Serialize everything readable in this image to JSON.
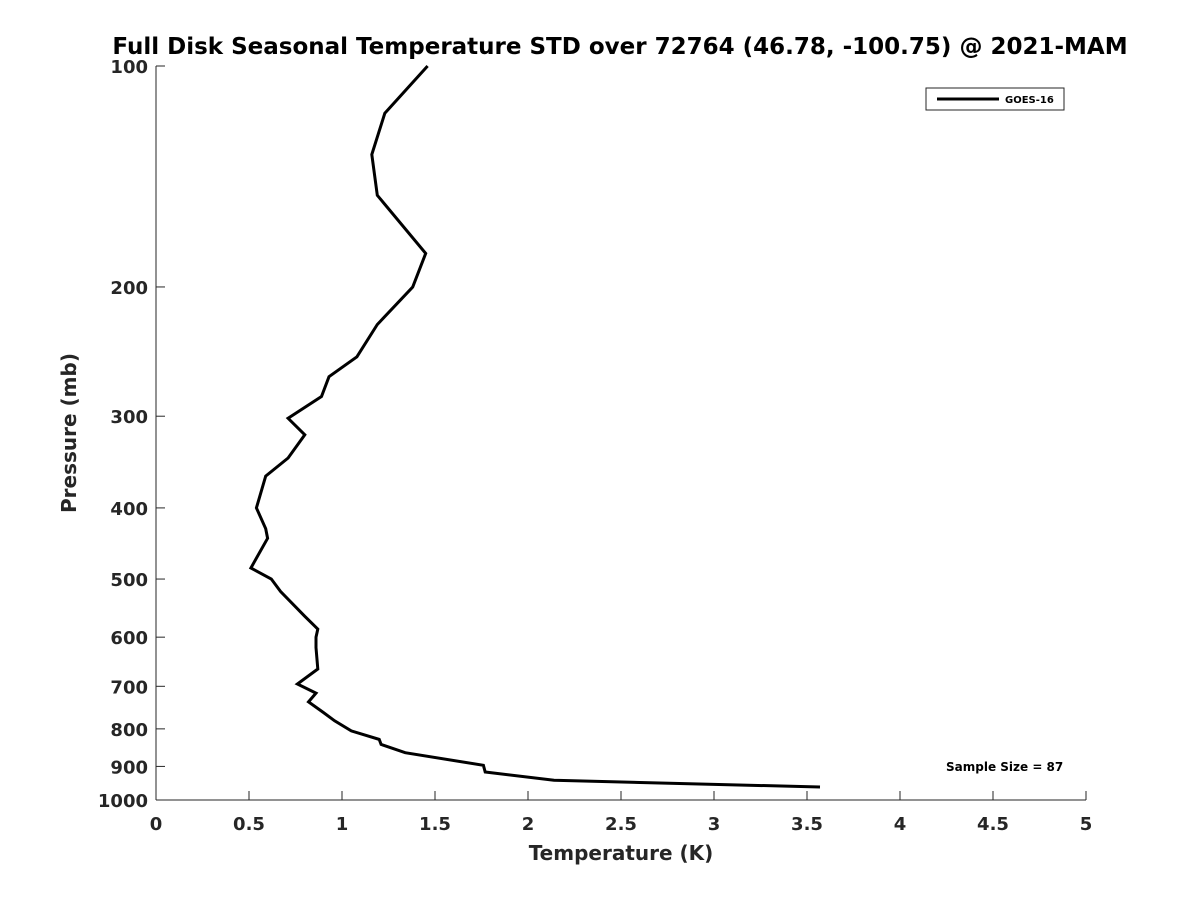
{
  "chart_data": {
    "type": "line",
    "title": "Full Disk Seasonal Temperature STD over 72764 (46.78, -100.75) @ 2021-MAM",
    "xlabel": "Temperature (K)",
    "ylabel": "Pressure (mb)",
    "xlim": [
      0,
      5
    ],
    "ylim": [
      100,
      1000
    ],
    "y_scale": "log",
    "y_reversed": true,
    "x_ticks": [
      0,
      0.5,
      1,
      1.5,
      2,
      2.5,
      3,
      3.5,
      4,
      4.5,
      5
    ],
    "x_tick_labels": [
      "0",
      "0.5",
      "1",
      "1.5",
      "2",
      "2.5",
      "3",
      "3.5",
      "4",
      "4.5",
      "5"
    ],
    "y_ticks": [
      100,
      200,
      300,
      400,
      500,
      600,
      700,
      800,
      900,
      1000
    ],
    "y_tick_labels": [
      "100",
      "200",
      "300",
      "400",
      "500",
      "600",
      "700",
      "800",
      "900",
      "1000"
    ],
    "grid": false,
    "legend_position": "top-right",
    "series": [
      {
        "name": "GOES-16",
        "color": "#000000",
        "x": [
          1.46,
          1.23,
          1.16,
          1.19,
          1.45,
          1.38,
          1.19,
          1.08,
          0.93,
          0.89,
          0.71,
          0.8,
          0.71,
          0.59,
          0.54,
          0.59,
          0.6,
          0.51,
          0.62,
          0.67,
          0.8,
          0.87,
          0.86,
          0.86,
          0.87,
          0.76,
          0.86,
          0.82,
          0.9,
          0.96,
          1.05,
          1.2,
          1.21,
          1.34,
          1.76,
          1.77,
          2.14,
          3.57
        ],
        "y": [
          100,
          116,
          132,
          150,
          180,
          200,
          225,
          249,
          265,
          282,
          302,
          318,
          342,
          362,
          400,
          427,
          440,
          483,
          500,
          520,
          562,
          585,
          600,
          620,
          663,
          695,
          715,
          735,
          760,
          780,
          805,
          827,
          840,
          862,
          897,
          916,
          940,
          960
        ]
      }
    ],
    "annotations": [
      "Sample Size = 87"
    ]
  }
}
